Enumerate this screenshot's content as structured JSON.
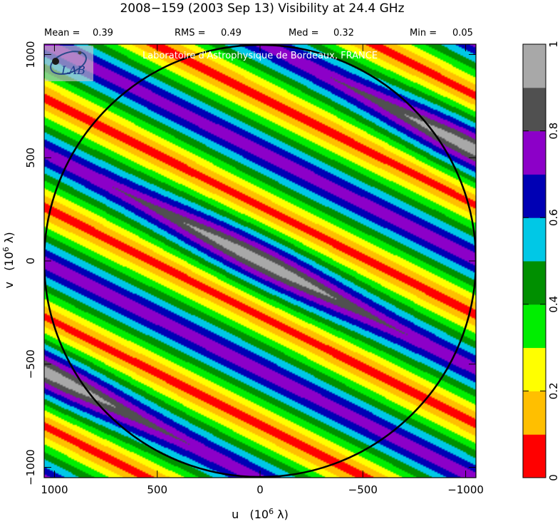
{
  "header": {
    "title": "2008−159   (2003 Sep 13)   Visibility at 24.4 GHz",
    "stats": [
      {
        "label": "Mean =",
        "value": "0.39"
      },
      {
        "label": "RMS =",
        "value": "0.49"
      },
      {
        "label": "Med =",
        "value": "0.32"
      },
      {
        "label": "Min =",
        "value": "0.05"
      }
    ]
  },
  "watermark": {
    "institute": "Laboratoire d'Astrophysique de Bordeaux, FRANCE",
    "logo_text": "LAB",
    "logo_icon": "lab-logo-icon"
  },
  "chart_data": {
    "type": "heatmap",
    "title": "2008−159   (2003 Sep 13)   Visibility at 24.4 GHz",
    "xlabel": "u   (10^6 λ)",
    "ylabel": "v   (10^6 λ)",
    "xlim": [
      1050,
      -1050
    ],
    "ylim": [
      -1050,
      1050
    ],
    "x_ticks": [
      1000,
      500,
      0,
      -500,
      -1000
    ],
    "x_tick_labels": [
      "1000",
      "500",
      "0",
      "−500",
      "−1000"
    ],
    "y_ticks": [
      1000,
      500,
      0,
      -500,
      -1000
    ],
    "y_tick_labels": [
      "1000",
      "500",
      "0",
      "−500",
      "−1000"
    ],
    "circle_radius": 1050,
    "contour_levels": [
      0,
      0.1,
      0.2,
      0.3,
      0.4,
      0.5,
      0.6,
      0.7,
      0.8,
      0.9,
      1.0
    ],
    "colors": [
      "#ff0000",
      "#ffbf00",
      "#ffff00",
      "#00ee00",
      "#008f00",
      "#00c8e6",
      "#0000b4",
      "#8c00c8",
      "#505050",
      "#a8a8a8"
    ],
    "colorbar": {
      "ticks": [
        0,
        0.2,
        0.4,
        0.6,
        0.8,
        1
      ],
      "tick_labels": [
        "0",
        "0.2",
        "0.4",
        "0.6",
        "0.8",
        "1"
      ]
    },
    "model": {
      "description_fringe_direction_u_v": [
        0.5,
        1.0
      ],
      "fringe_spacing_u": 530,
      "peak_value": 1.0,
      "peaks": [
        {
          "u": 0,
          "v": 0
        },
        {
          "u": -1060,
          "v": 530
        },
        {
          "u": 1060,
          "v": -530
        }
      ]
    },
    "grid": false,
    "legend": "colorbar-right"
  }
}
